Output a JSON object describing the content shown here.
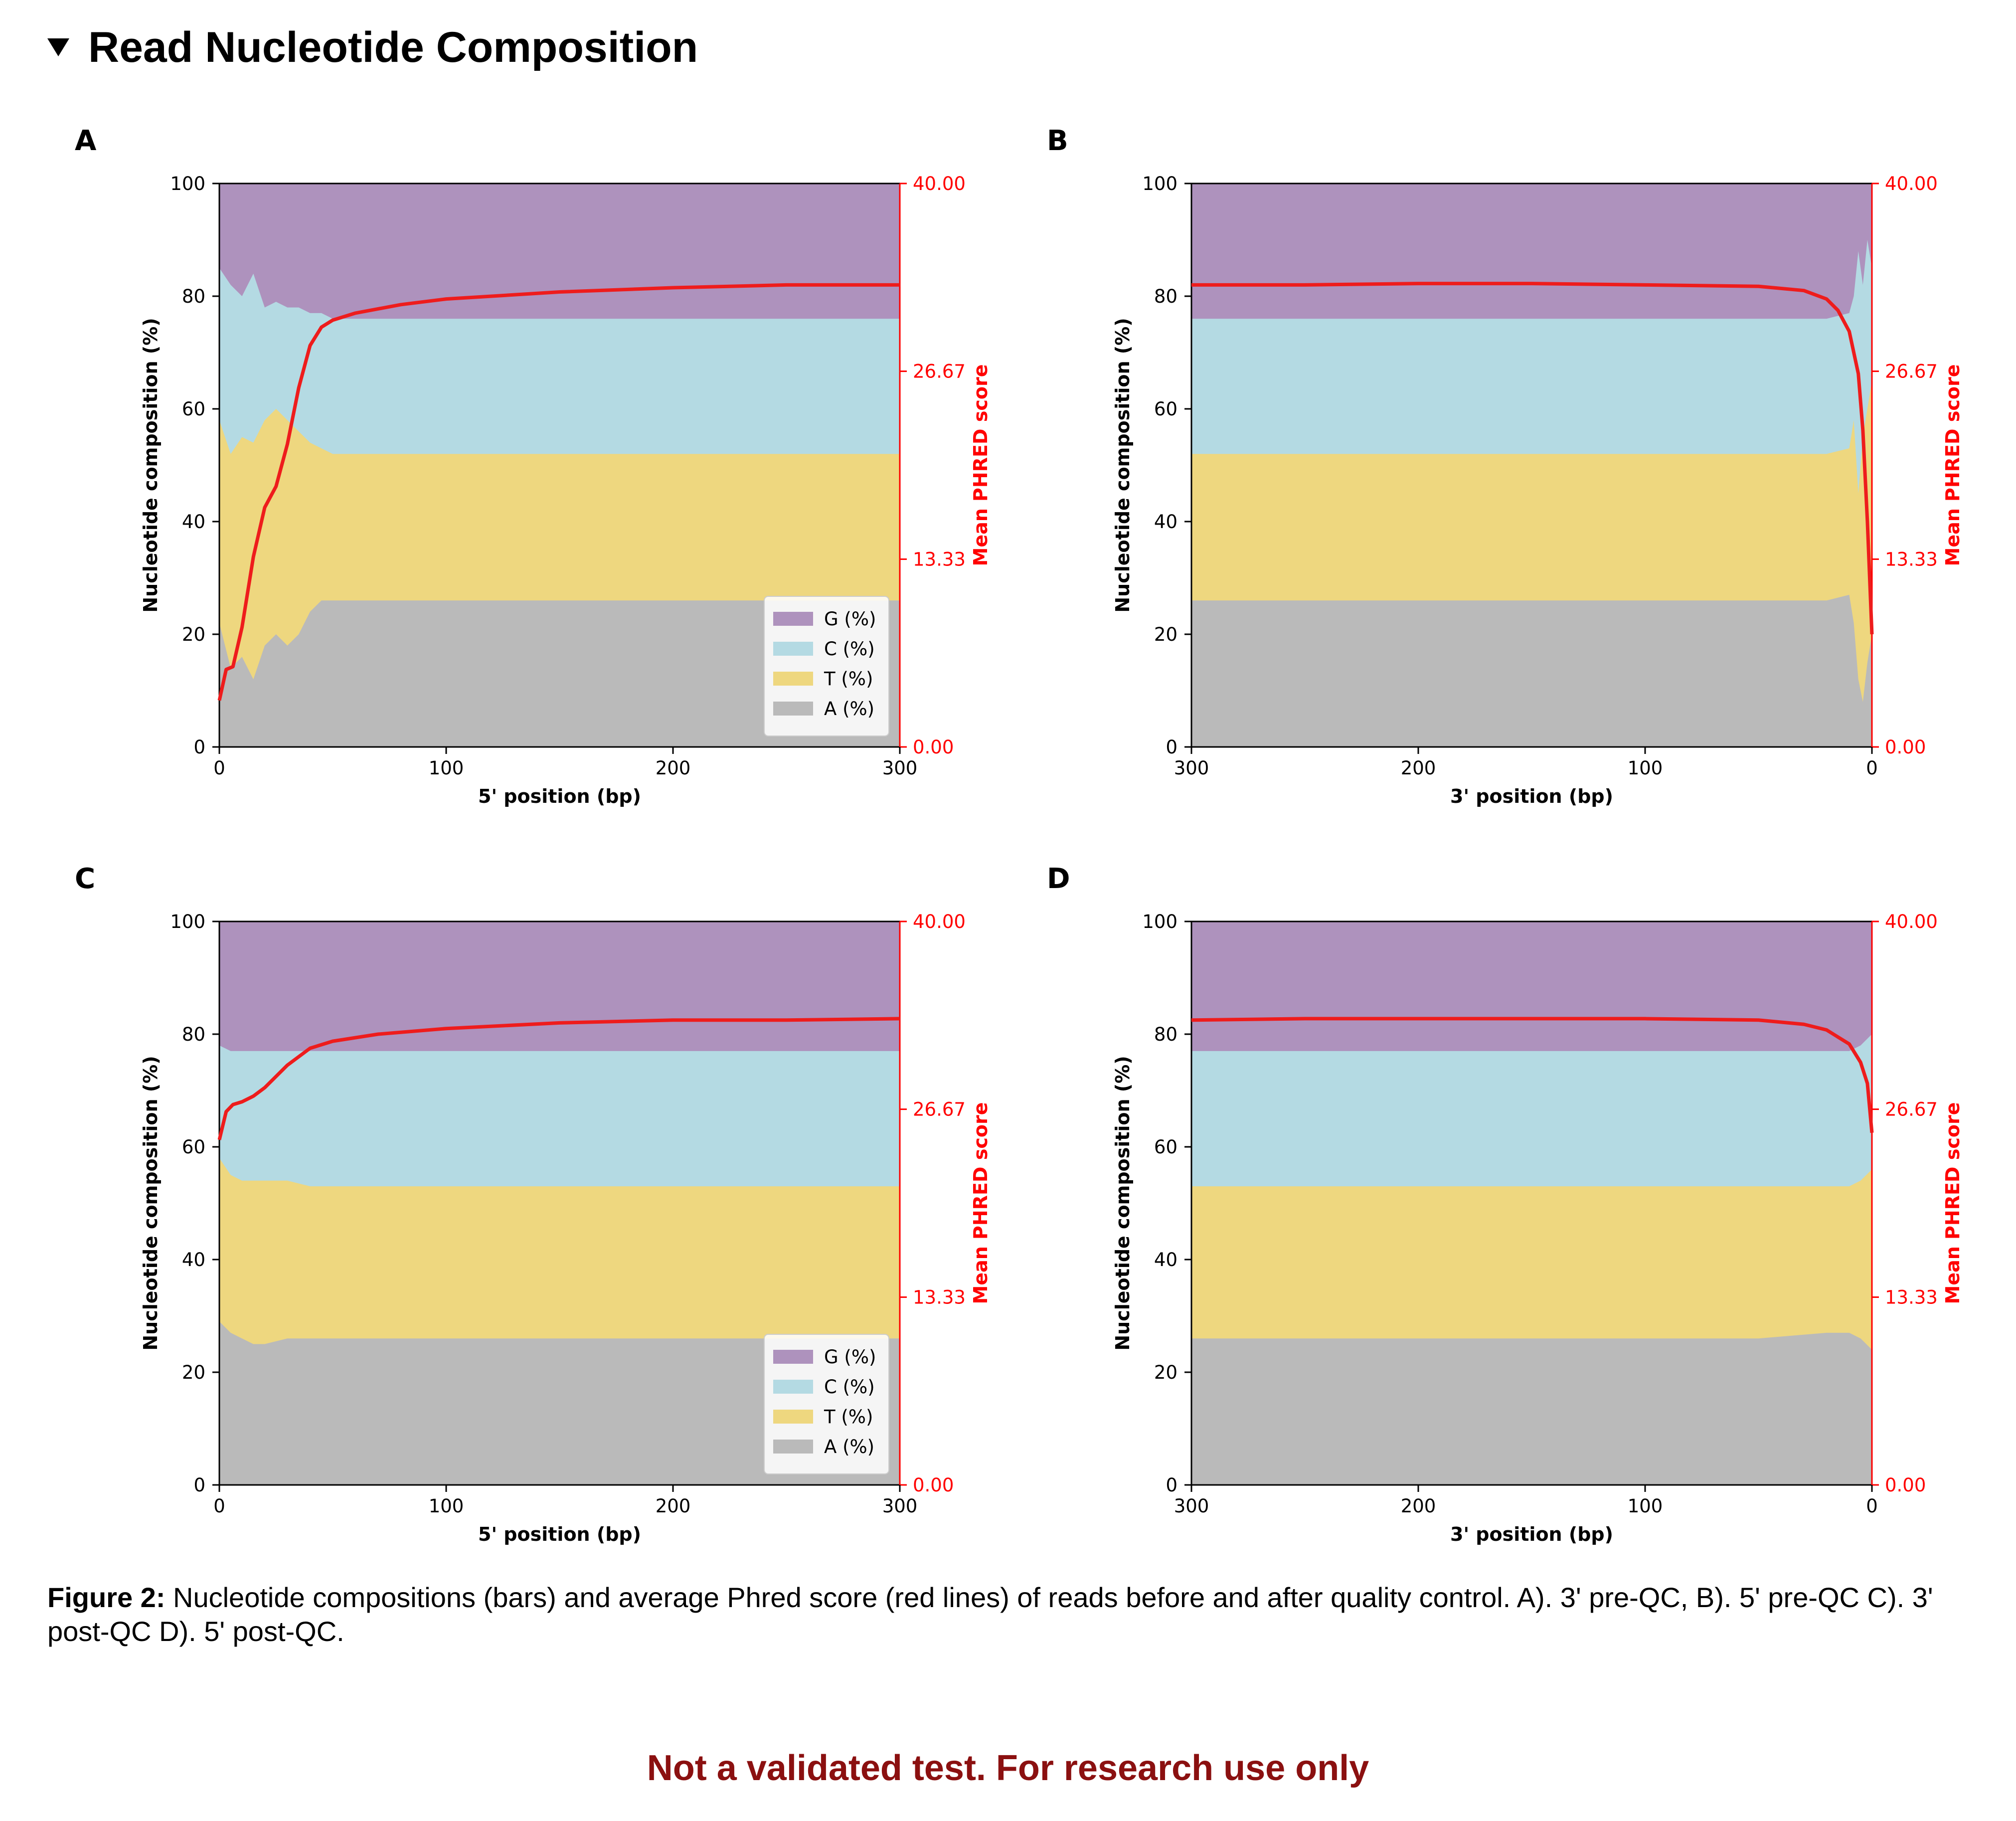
{
  "section": {
    "title": "Read Nucleotide Composition"
  },
  "caption": {
    "label": "Figure 2:",
    "text": " Nucleotide compositions (bars) and average Phred score (red lines) of reads before and after quality control. A). 3' pre-QC, B). 5' pre-QC C). 3' post-QC D). 5' post-QC."
  },
  "footer": {
    "note": "Not a validated test. For research use only"
  },
  "colors": {
    "G": "#ae92bd",
    "C": "#b4dae3",
    "T": "#eed77f",
    "A": "#bababa",
    "phred": "#ee1c1c",
    "right_axis": "#ff0000"
  },
  "chart_data": [
    {
      "panel": "A",
      "type": "area",
      "xlabel": "5' position (bp)",
      "ylabel": "Nucleotide composition (%)",
      "y2label": "Mean PHRED score",
      "xlim": [
        0,
        300
      ],
      "reversed_x": false,
      "xticks": [
        "0",
        "100",
        "200",
        "300"
      ],
      "ylim": [
        0,
        100
      ],
      "yticks": [
        "0",
        "20",
        "40",
        "60",
        "80",
        "100"
      ],
      "y2lim": [
        0,
        40
      ],
      "y2ticks": [
        "0.00",
        "13.33",
        "26.67",
        "40.00"
      ],
      "legend": {
        "placement": "lower-right",
        "entries": [
          "G (%)",
          "C (%)",
          "T (%)",
          "A (%)"
        ]
      },
      "stack_order": [
        "A",
        "T",
        "C",
        "G"
      ],
      "x": [
        0,
        5,
        10,
        15,
        20,
        25,
        30,
        35,
        40,
        45,
        50,
        60,
        80,
        100,
        150,
        200,
        250,
        300
      ],
      "series": [
        {
          "name": "A (%)",
          "values": [
            22,
            14,
            16,
            12,
            18,
            20,
            18,
            20,
            24,
            26,
            26,
            26,
            26,
            26,
            26,
            26,
            26,
            26
          ]
        },
        {
          "name": "T (%)",
          "values": [
            58,
            52,
            55,
            54,
            58,
            60,
            58,
            56,
            54,
            53,
            52,
            52,
            52,
            52,
            52,
            52,
            52,
            52
          ]
        },
        {
          "name": "C (%)",
          "values": [
            85,
            82,
            80,
            84,
            78,
            79,
            78,
            78,
            77,
            77,
            76,
            76,
            76,
            76,
            76,
            76,
            76,
            76
          ]
        },
        {
          "name": "G (%)",
          "values": [
            100,
            100,
            100,
            100,
            100,
            100,
            100,
            100,
            100,
            100,
            100,
            100,
            100,
            100,
            100,
            100,
            100,
            100
          ]
        }
      ],
      "phred": {
        "x": [
          0,
          3,
          6,
          10,
          15,
          20,
          25,
          30,
          35,
          40,
          45,
          50,
          60,
          80,
          100,
          150,
          200,
          250,
          300
        ],
        "values": [
          3.3,
          5.5,
          5.7,
          8.5,
          13.5,
          17.0,
          18.5,
          21.5,
          25.5,
          28.5,
          29.8,
          30.3,
          30.8,
          31.4,
          31.8,
          32.3,
          32.6,
          32.8,
          32.8
        ]
      }
    },
    {
      "panel": "B",
      "type": "area",
      "xlabel": "3' position (bp)",
      "ylabel": "Nucleotide composition (%)",
      "y2label": "Mean PHRED score",
      "xlim": [
        300,
        0
      ],
      "reversed_x": true,
      "xticks": [
        "300",
        "200",
        "100",
        "0"
      ],
      "ylim": [
        0,
        100
      ],
      "yticks": [
        "0",
        "20",
        "40",
        "60",
        "80",
        "100"
      ],
      "y2lim": [
        0,
        40
      ],
      "y2ticks": [
        "0.00",
        "13.33",
        "26.67",
        "40.00"
      ],
      "legend": null,
      "stack_order": [
        "A",
        "T",
        "C",
        "G"
      ],
      "x": [
        300,
        250,
        200,
        150,
        100,
        50,
        20,
        10,
        8,
        6,
        4,
        2,
        0
      ],
      "series": [
        {
          "name": "A (%)",
          "values": [
            26,
            26,
            26,
            26,
            26,
            26,
            26,
            27,
            22,
            12,
            8,
            15,
            20
          ]
        },
        {
          "name": "T (%)",
          "values": [
            52,
            52,
            52,
            52,
            52,
            52,
            52,
            53,
            58,
            45,
            55,
            60,
            65
          ]
        },
        {
          "name": "C (%)",
          "values": [
            76,
            76,
            76,
            76,
            76,
            76,
            76,
            77,
            80,
            88,
            82,
            90,
            85
          ]
        },
        {
          "name": "G (%)",
          "values": [
            100,
            100,
            100,
            100,
            100,
            100,
            100,
            100,
            100,
            100,
            100,
            100,
            100
          ]
        }
      ],
      "phred": {
        "x": [
          300,
          250,
          200,
          150,
          100,
          50,
          30,
          20,
          15,
          10,
          6,
          4,
          2,
          0
        ],
        "values": [
          32.8,
          32.8,
          32.9,
          32.9,
          32.8,
          32.7,
          32.4,
          31.8,
          31.0,
          29.5,
          26.5,
          22.5,
          16.0,
          8.0
        ]
      }
    },
    {
      "panel": "C",
      "type": "area",
      "xlabel": "5' position (bp)",
      "ylabel": "Nucleotide composition (%)",
      "y2label": "Mean PHRED score",
      "xlim": [
        0,
        300
      ],
      "reversed_x": false,
      "xticks": [
        "0",
        "100",
        "200",
        "300"
      ],
      "ylim": [
        0,
        100
      ],
      "yticks": [
        "0",
        "20",
        "40",
        "60",
        "80",
        "100"
      ],
      "y2lim": [
        0,
        40
      ],
      "y2ticks": [
        "0.00",
        "13.33",
        "26.67",
        "40.00"
      ],
      "legend": {
        "placement": "lower-right",
        "entries": [
          "G (%)",
          "C (%)",
          "T (%)",
          "A (%)"
        ]
      },
      "stack_order": [
        "A",
        "T",
        "C",
        "G"
      ],
      "x": [
        0,
        5,
        10,
        15,
        20,
        30,
        40,
        50,
        100,
        150,
        200,
        250,
        300
      ],
      "series": [
        {
          "name": "A (%)",
          "values": [
            29,
            27,
            26,
            25,
            25,
            26,
            26,
            26,
            26,
            26,
            26,
            26,
            26
          ]
        },
        {
          "name": "T (%)",
          "values": [
            58,
            55,
            54,
            54,
            54,
            54,
            53,
            53,
            53,
            53,
            53,
            53,
            53
          ]
        },
        {
          "name": "C (%)",
          "values": [
            78,
            77,
            77,
            77,
            77,
            77,
            77,
            77,
            77,
            77,
            77,
            77,
            77
          ]
        },
        {
          "name": "G (%)",
          "values": [
            100,
            100,
            100,
            100,
            100,
            100,
            100,
            100,
            100,
            100,
            100,
            100,
            100
          ]
        }
      ],
      "phred": {
        "x": [
          0,
          3,
          6,
          10,
          15,
          20,
          30,
          40,
          50,
          70,
          100,
          150,
          200,
          250,
          300
        ],
        "values": [
          24.5,
          26.5,
          27.0,
          27.2,
          27.6,
          28.2,
          29.8,
          31.0,
          31.5,
          32.0,
          32.4,
          32.8,
          33.0,
          33.0,
          33.1
        ]
      }
    },
    {
      "panel": "D",
      "type": "area",
      "xlabel": "3' position (bp)",
      "ylabel": "Nucleotide composition (%)",
      "y2label": "Mean PHRED score",
      "xlim": [
        300,
        0
      ],
      "reversed_x": true,
      "xticks": [
        "300",
        "200",
        "100",
        "0"
      ],
      "ylim": [
        0,
        100
      ],
      "yticks": [
        "0",
        "20",
        "40",
        "60",
        "80",
        "100"
      ],
      "y2lim": [
        0,
        40
      ],
      "y2ticks": [
        "0.00",
        "13.33",
        "26.67",
        "40.00"
      ],
      "legend": null,
      "stack_order": [
        "A",
        "T",
        "C",
        "G"
      ],
      "x": [
        300,
        250,
        200,
        150,
        100,
        50,
        20,
        10,
        5,
        0
      ],
      "series": [
        {
          "name": "A (%)",
          "values": [
            26,
            26,
            26,
            26,
            26,
            26,
            27,
            27,
            26,
            24
          ]
        },
        {
          "name": "T (%)",
          "values": [
            53,
            53,
            53,
            53,
            53,
            53,
            53,
            53,
            54,
            56
          ]
        },
        {
          "name": "C (%)",
          "values": [
            77,
            77,
            77,
            77,
            77,
            77,
            77,
            77,
            78,
            80
          ]
        },
        {
          "name": "G (%)",
          "values": [
            100,
            100,
            100,
            100,
            100,
            100,
            100,
            100,
            100,
            100
          ]
        }
      ],
      "phred": {
        "x": [
          300,
          250,
          200,
          150,
          100,
          50,
          30,
          20,
          10,
          5,
          2,
          0
        ],
        "values": [
          33.0,
          33.1,
          33.1,
          33.1,
          33.1,
          33.0,
          32.7,
          32.3,
          31.3,
          30.0,
          28.5,
          25.0
        ]
      }
    }
  ]
}
